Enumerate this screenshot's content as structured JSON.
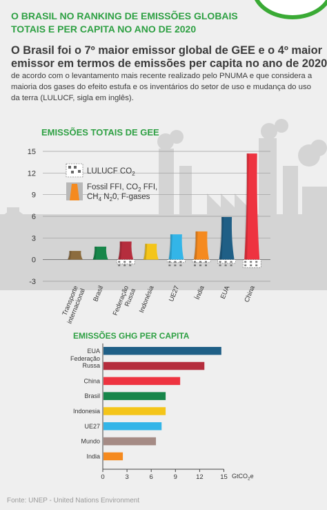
{
  "header": {
    "title_line1": "O BRASIL NO RANKING DE EMISSÕES GLOBAIS",
    "title_line2": "TOTAIS E PER CAPITA NO ANO DE 2020"
  },
  "lead": {
    "line1": "O Brasil foi o 7º maior emissor global de GEE e o 4º maior",
    "line2": "emissor em termos de emissões per capita no ano de 2020,",
    "sub_line1": "de acordo com o levantamento mais recente realizado pelo PNUMA e que considera a",
    "sub_line2": "maioria dos gases do efeito estufa e os inventários  do setor de uso e mudança do uso",
    "sub_line3": "da terra (LULUCF, sigla em inglês)."
  },
  "chart_data": [
    {
      "type": "bar",
      "title": "EMISSÕES TOTAIS DE GEE",
      "categories": [
        "Transporte internacional",
        "Brasil",
        "Federação Russa",
        "Indonésia",
        "UE27",
        "Índia",
        "EUA",
        "China"
      ],
      "category_labels": [
        [
          "Transporte",
          "internacional"
        ],
        [
          "Brasil"
        ],
        [
          "Federação",
          "Russa"
        ],
        [
          "Indonésia"
        ],
        [
          "UE27"
        ],
        [
          "Índia"
        ],
        [
          "EUA"
        ],
        [
          "China"
        ]
      ],
      "series": [
        {
          "name": "Fossil FFI, CO₂ FFI, CH₄ N₂0, F-gases",
          "values": [
            1.2,
            1.8,
            2.5,
            2.2,
            3.5,
            3.9,
            5.9,
            14.7
          ]
        },
        {
          "name": "LULUCF CO₂",
          "values": [
            0,
            0,
            -0.6,
            0,
            -0.4,
            -0.4,
            -0.5,
            -1.1
          ]
        }
      ],
      "yticks": [
        15,
        12,
        9,
        6,
        3,
        0,
        -3
      ],
      "ylim": [
        -3,
        15
      ],
      "colors": [
        "#8c6c3e",
        "#17864a",
        "#b52d3d",
        "#f4c51a",
        "#33b5e8",
        "#f58a1f",
        "#1f5f86",
        "#ee3340"
      ],
      "legend": {
        "lulucf": "LULUCF CO",
        "lulucf_sub": "2",
        "fossil_line1a": "Fossil FFI, CO",
        "fossil_line1b": "2",
        "fossil_line1c": " FFI,",
        "fossil_line2a": "CH",
        "fossil_line2b": "4",
        "fossil_line2c": " N",
        "fossil_line2d": "2",
        "fossil_line2e": "0, F-gases"
      }
    },
    {
      "type": "bar",
      "orientation": "horizontal",
      "title": "EMISSÕES GHG  PER CAPITA",
      "categories": [
        "EUA",
        "Federação Russa",
        "China",
        "Brasil",
        "Indonésia",
        "UE27",
        "Mundo",
        "Índia"
      ],
      "category_labels": [
        [
          "EUA"
        ],
        [
          "Federação",
          "Russa"
        ],
        [
          "China"
        ],
        [
          "Brasil"
        ],
        [
          "Indonesia"
        ],
        [
          "UE27"
        ],
        [
          "Mundo"
        ],
        [
          "India"
        ]
      ],
      "values": [
        14.6,
        12.5,
        9.5,
        7.7,
        7.7,
        7.2,
        6.5,
        2.4
      ],
      "colors": [
        "#1f5f86",
        "#b52d3d",
        "#ee3340",
        "#17864a",
        "#f4c51a",
        "#33b5e8",
        "#a58b85",
        "#f58a1f"
      ],
      "xticks": [
        0,
        3,
        6,
        9,
        12,
        15
      ],
      "xlim": [
        0,
        15
      ],
      "xlabel": "GtCO",
      "xlabel_sub": "2",
      "xlabel_suffix": "e"
    }
  ],
  "footer": "Fonte: UNEP - United Nations Environment"
}
